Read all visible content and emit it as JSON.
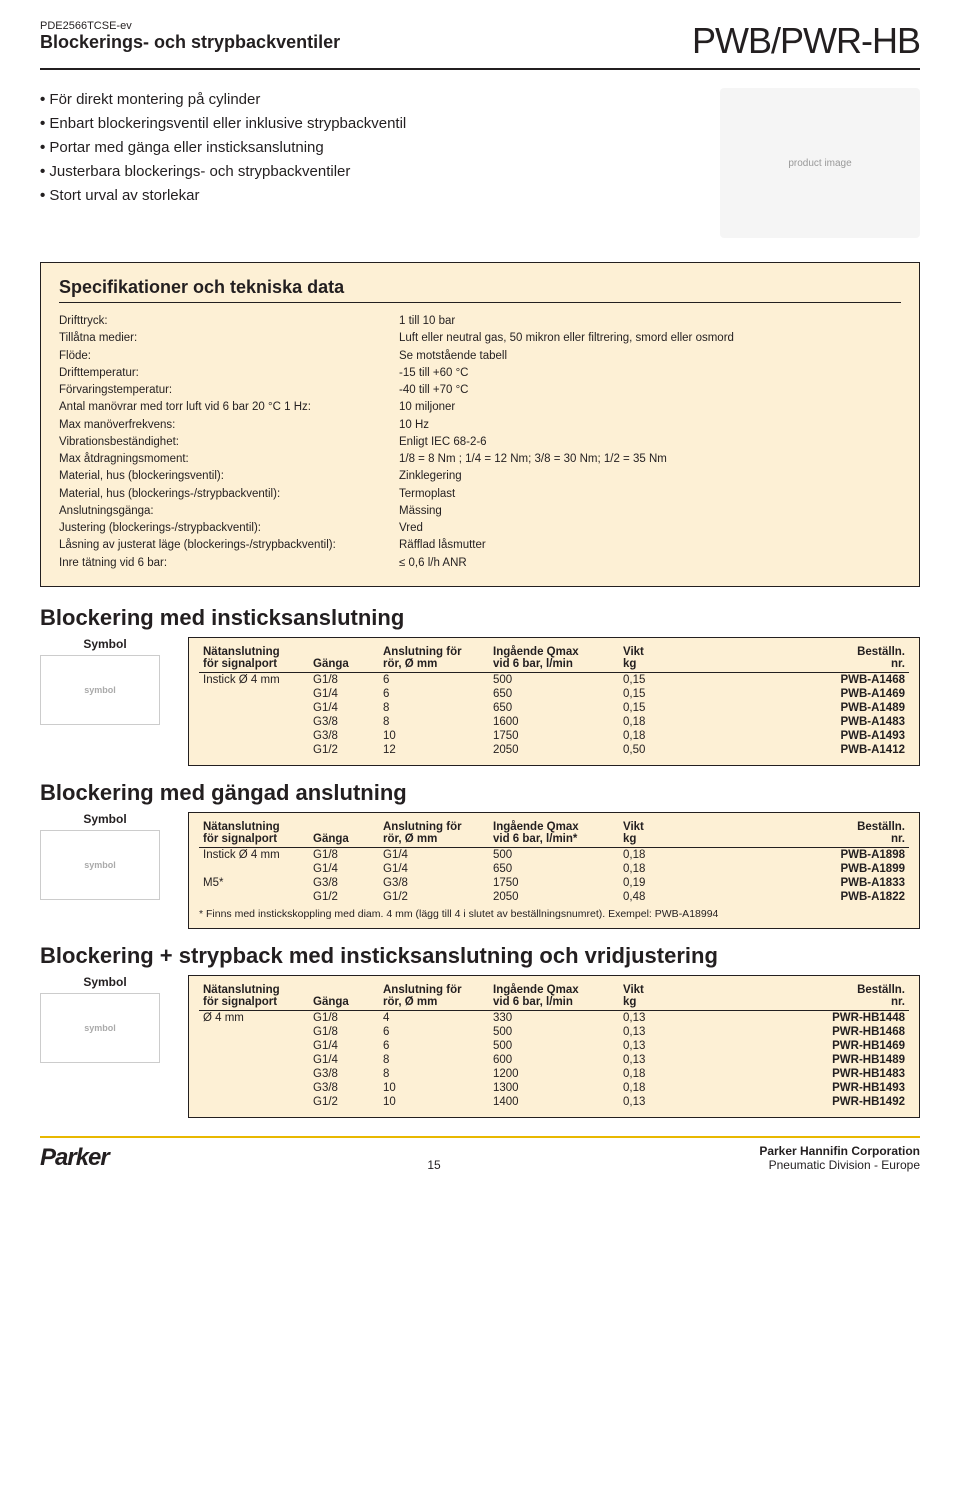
{
  "doc_code": "PDE2566TCSE-ev",
  "doc_subtitle": "Blockerings- och strypbackventiler",
  "product_code": "PWB/PWR-HB",
  "bullets": [
    "För direkt montering på cylinder",
    "Enbart blockeringsventil eller inklusive strypbackventil",
    "Portar med gänga eller insticksanslutning",
    "Justerbara blockerings- och strypbackventiler",
    "Stort urval av storlekar"
  ],
  "spec_title": "Specifikationer och tekniska data",
  "specs": [
    {
      "label": "Drifttryck:",
      "value": "1 till 10 bar"
    },
    {
      "label": "Tillåtna medier:",
      "value": "Luft eller neutral gas, 50 mikron eller filtrering, smord eller osmord"
    },
    {
      "label": "Flöde:",
      "value": "Se motstående tabell"
    },
    {
      "label": "Drifttemperatur:",
      "value": "-15 till +60 °C"
    },
    {
      "label": "Förvaringstemperatur:",
      "value": "-40 till +70 °C"
    },
    {
      "label": "Antal manövrar med torr luft vid 6 bar 20 °C 1 Hz:",
      "value": "10 miljoner"
    },
    {
      "label": "Max manöverfrekvens:",
      "value": "10 Hz"
    },
    {
      "label": "Vibrationsbeständighet:",
      "value": "Enligt IEC 68-2-6"
    },
    {
      "label": "Max åtdragningsmoment:",
      "value": "1/8 = 8 Nm ; 1/4 = 12 Nm; 3/8 = 30 Nm; 1/2 = 35 Nm"
    },
    {
      "label": "Material, hus (blockeringsventil):",
      "value": "Zinklegering"
    },
    {
      "label": "Material, hus (blockerings-/strypbackventil):",
      "value": "Termoplast"
    },
    {
      "label": "Anslutningsgänga:",
      "value": "Mässing"
    },
    {
      "label": "Justering (blockerings-/strypbackventil):",
      "value": "Vred"
    },
    {
      "label": "Låsning av justerat läge (blockerings-/strypbackventil):",
      "value": "Räfflad låsmutter"
    },
    {
      "label": "Inre tätning vid 6 bar:",
      "value": "≤ 0,6 l/h ANR"
    }
  ],
  "symbol_label": "Symbol",
  "headers": {
    "nat1": "Nätanslutning",
    "nat2": "för signalport",
    "ganga": "Gänga",
    "ansl1": "Anslutning för",
    "ansl2": "rör, Ø mm",
    "qmax1": "Ingående Qmax",
    "qmax2": "vid 6 bar, l/min",
    "qmax2star": "vid 6 bar, l/min*",
    "vikt1": "Vikt",
    "vikt2": "kg",
    "best1": "Beställn.",
    "best2": "nr."
  },
  "section1": {
    "title": "Blockering med insticksanslutning",
    "rows": [
      {
        "nat": "Instick Ø 4 mm",
        "ganga": "G1/8",
        "ansl": "6",
        "qmax": "500",
        "vikt": "0,15",
        "best": "PWB-A1468"
      },
      {
        "nat": "",
        "ganga": "G1/4",
        "ansl": "6",
        "qmax": "650",
        "vikt": "0,15",
        "best": "PWB-A1469"
      },
      {
        "nat": "",
        "ganga": "G1/4",
        "ansl": "8",
        "qmax": "650",
        "vikt": "0,15",
        "best": "PWB-A1489"
      },
      {
        "nat": "",
        "ganga": "G3/8",
        "ansl": "8",
        "qmax": "1600",
        "vikt": "0,18",
        "best": "PWB-A1483"
      },
      {
        "nat": "",
        "ganga": "G3/8",
        "ansl": "10",
        "qmax": "1750",
        "vikt": "0,18",
        "best": "PWB-A1493"
      },
      {
        "nat": "",
        "ganga": "G1/2",
        "ansl": "12",
        "qmax": "2050",
        "vikt": "0,50",
        "best": "PWB-A1412"
      }
    ]
  },
  "section2": {
    "title": "Blockering med gängad anslutning",
    "rows": [
      {
        "nat": "Instick Ø 4 mm",
        "ganga": "G1/8",
        "ansl": "G1/4",
        "qmax": "500",
        "vikt": "0,18",
        "best": "PWB-A1898"
      },
      {
        "nat": "",
        "ganga": "G1/4",
        "ansl": "G1/4",
        "qmax": "650",
        "vikt": "0,18",
        "best": "PWB-A1899"
      },
      {
        "nat": "M5*",
        "ganga": "G3/8",
        "ansl": "G3/8",
        "qmax": "1750",
        "vikt": "0,19",
        "best": "PWB-A1833"
      },
      {
        "nat": "",
        "ganga": "G1/2",
        "ansl": "G1/2",
        "qmax": "2050",
        "vikt": "0,48",
        "best": "PWB-A1822"
      }
    ],
    "note": "* Finns med  instickskoppling med diam. 4 mm (lägg till 4 i slutet av beställningsnumret). Exempel: PWB-A18994"
  },
  "section3": {
    "title": "Blockering + strypback med insticksanslutning och vridjustering",
    "rows": [
      {
        "nat": "Ø 4 mm",
        "ganga": "G1/8",
        "ansl": "4",
        "qmax": "330",
        "vikt": "0,13",
        "best": "PWR-HB1448"
      },
      {
        "nat": "",
        "ganga": "G1/8",
        "ansl": "6",
        "qmax": "500",
        "vikt": "0,13",
        "best": "PWR-HB1468"
      },
      {
        "nat": "",
        "ganga": "G1/4",
        "ansl": "6",
        "qmax": "500",
        "vikt": "0,13",
        "best": "PWR-HB1469"
      },
      {
        "nat": "",
        "ganga": "G1/4",
        "ansl": "8",
        "qmax": "600",
        "vikt": "0,13",
        "best": "PWR-HB1489"
      },
      {
        "nat": "",
        "ganga": "G3/8",
        "ansl": "8",
        "qmax": "1200",
        "vikt": "0,18",
        "best": "PWR-HB1483"
      },
      {
        "nat": "",
        "ganga": "G3/8",
        "ansl": "10",
        "qmax": "1300",
        "vikt": "0,18",
        "best": "PWR-HB1493"
      },
      {
        "nat": "",
        "ganga": "G1/2",
        "ansl": "10",
        "qmax": "1400",
        "vikt": "0,13",
        "best": "PWR-HB1492"
      }
    ]
  },
  "footer": {
    "logo": "Parker",
    "page": "15",
    "corp": "Parker Hannifin Corporation",
    "div": "Pneumatic Division - Europe"
  },
  "colors": {
    "spec_bg": "#fdf0d5",
    "rule": "#231f20",
    "footer_rule": "#e8b800"
  }
}
